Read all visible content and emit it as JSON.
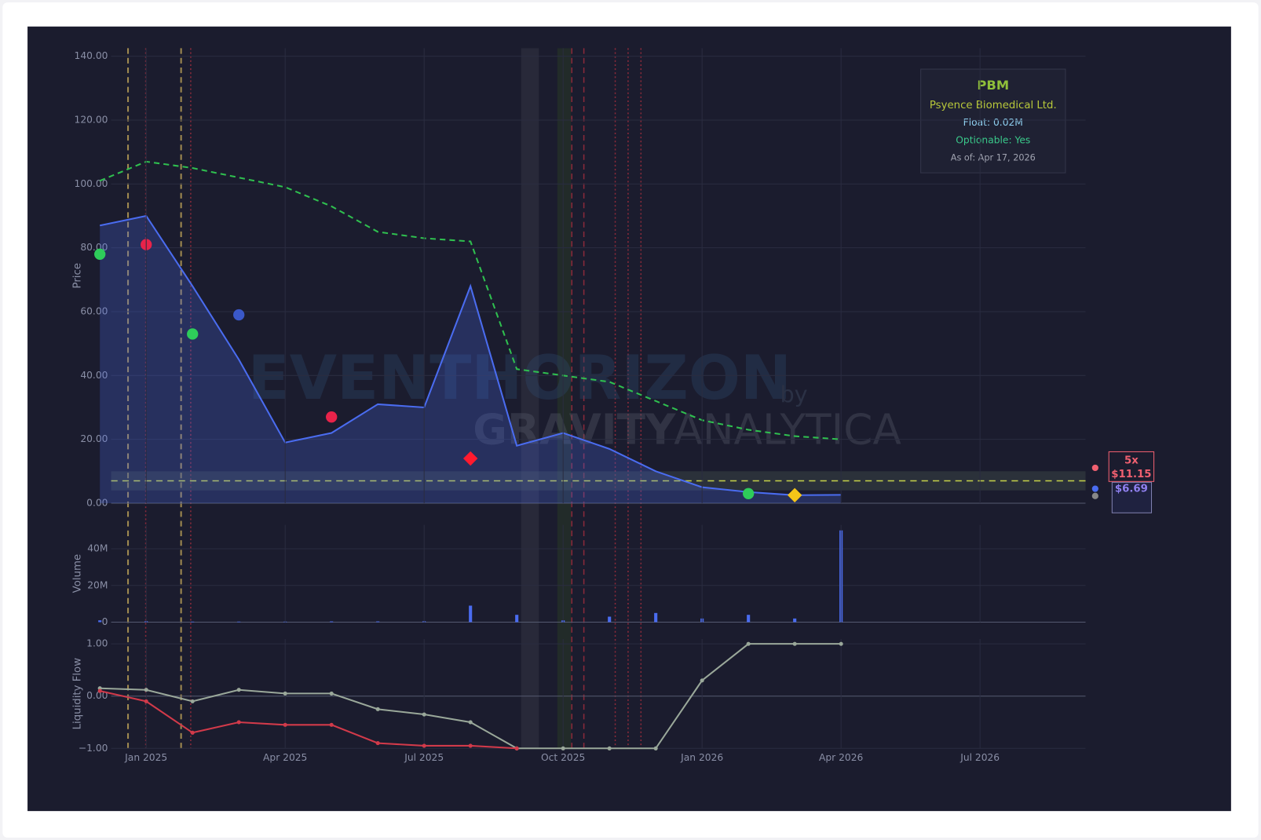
{
  "chart_data": [
    {
      "type": "line",
      "ylabel": "Price",
      "x": [
        "2024-12",
        "2025-01",
        "2025-02",
        "2025-03",
        "2025-04",
        "2025-05",
        "2025-06",
        "2025-07",
        "2025-08",
        "2025-09",
        "2025-10",
        "2025-11",
        "2025-12",
        "2026-01",
        "2026-02",
        "2026-03",
        "2026-04"
      ],
      "series": [
        {
          "color": "#4a6cf0",
          "fill": true,
          "values": [
            87,
            90,
            68,
            45,
            19,
            22,
            31,
            30,
            68,
            18,
            22,
            17,
            10,
            5,
            3.5,
            2.5,
            2.6
          ]
        },
        {
          "color": "#2fbf4f",
          "dash": true,
          "values": [
            101,
            107,
            105,
            102,
            99,
            93,
            85,
            83,
            82,
            42,
            40,
            38,
            32,
            26,
            23,
            21,
            20
          ]
        }
      ],
      "hline": {
        "value": 7,
        "color": "#c8d44a"
      },
      "band": [
        4,
        10
      ],
      "markers": [
        {
          "x": "2024-12",
          "y": 78,
          "color": "#2ecc5a",
          "shape": "circle"
        },
        {
          "x": "2025-01",
          "y": 81,
          "color": "#e8234a",
          "shape": "circle"
        },
        {
          "x": "2025-02",
          "y": 53,
          "color": "#2ecc5a",
          "shape": "circle"
        },
        {
          "x": "2025-03",
          "y": 59,
          "color": "#3a58c8",
          "shape": "circle"
        },
        {
          "x": "2025-05",
          "y": 27,
          "color": "#e8234a",
          "shape": "circle"
        },
        {
          "x": "2025-08",
          "y": 14,
          "color": "#ff1a2e",
          "shape": "diamond"
        },
        {
          "x": "2026-02",
          "y": 3,
          "color": "#2ecc5a",
          "shape": "circle"
        },
        {
          "x": "2026-03",
          "y": 2.5,
          "color": "#f5c518",
          "shape": "diamond"
        }
      ],
      "xlim": [
        "2024-12",
        "2026-09"
      ],
      "ylim": [
        0,
        140
      ],
      "yticks": [
        {
          "value": 0,
          "label": "0.00"
        },
        {
          "value": 20,
          "label": "20.00"
        },
        {
          "value": 40,
          "label": "40.00"
        },
        {
          "value": 60,
          "label": "60.00"
        },
        {
          "value": 80,
          "label": "80.00"
        },
        {
          "value": 100,
          "label": "100.00"
        },
        {
          "value": 120,
          "label": "120.00"
        },
        {
          "value": 140,
          "label": "140.00"
        }
      ],
      "grid": true
    },
    {
      "type": "bar",
      "ylabel": "Volume",
      "color": "#4a6cf0",
      "x": [
        "2024-12",
        "2025-01",
        "2025-02",
        "2025-03",
        "2025-04",
        "2025-05",
        "2025-06",
        "2025-07",
        "2025-08",
        "2025-09",
        "2025-10",
        "2025-11",
        "2025-12",
        "2026-01",
        "2026-02",
        "2026-03",
        "2026-04"
      ],
      "values": [
        1000000,
        500000,
        300000,
        300000,
        300000,
        400000,
        400000,
        500000,
        9000000,
        4000000,
        1000000,
        3000000,
        5000000,
        2000000,
        4000000,
        2000000,
        50000000
      ],
      "xlim": [
        "2024-12",
        "2026-09"
      ],
      "ylim": [
        0,
        53000000
      ],
      "yticks": [
        0,
        {
          "value": 20000000,
          "label": "20M"
        },
        {
          "value": 40000000,
          "label": "40M"
        }
      ],
      "grid": true
    },
    {
      "type": "line",
      "ylabel": "Liquidity Flow",
      "x": [
        "2024-12",
        "2025-01",
        "2025-02",
        "2025-03",
        "2025-04",
        "2025-05",
        "2025-06",
        "2025-07",
        "2025-08",
        "2025-09",
        "2025-10",
        "2025-11",
        "2025-12",
        "2026-01",
        "2026-02",
        "2026-03",
        "2026-04"
      ],
      "series": [
        {
          "color": "#9aa89a",
          "dots": true,
          "values": [
            0.15,
            0.12,
            -0.1,
            0.12,
            0.05,
            0.05,
            -0.25,
            -0.35,
            -0.5,
            -1,
            -1,
            -1,
            -1,
            0.3,
            1,
            1,
            1
          ]
        },
        {
          "color": "#d23a4a",
          "dots": true,
          "values": [
            0.1,
            -0.1,
            -0.7,
            -0.5,
            -0.55,
            -0.55,
            -0.9,
            -0.95,
            -0.95,
            -1,
            null,
            null,
            null,
            null,
            null,
            null,
            null
          ]
        }
      ],
      "xlim": [
        "2024-12",
        "2026-09"
      ],
      "ylim": [
        -1,
        1
      ],
      "yticks": [
        {
          "value": -1,
          "label": "−1.00"
        },
        {
          "value": 0,
          "label": "0.00"
        },
        {
          "value": 1,
          "label": "1.00"
        }
      ],
      "xticks": [
        {
          "value": "2025-01",
          "label": "Jan 2025"
        },
        {
          "value": "2025-04",
          "label": "Apr 2025"
        },
        {
          "value": "2025-07",
          "label": "Jul 2025"
        },
        {
          "value": "2025-10",
          "label": "Oct 2025"
        },
        {
          "value": "2026-01",
          "label": "Jan 2026"
        },
        {
          "value": "2026-04",
          "label": "Apr 2026"
        },
        {
          "value": "2026-07",
          "label": "Jul 2026"
        }
      ],
      "grid": true
    }
  ],
  "info_box": {
    "ticker": "PBM",
    "company": "Psyence Biomedical Ltd.",
    "float": "Float: 0.02M",
    "optionable": "Optionable: Yes",
    "as_of": "As of: Apr 17, 2026"
  },
  "price_labels": {
    "multiple": "5x",
    "target": "$11.15",
    "last": "$6.69"
  },
  "watermark": {
    "main": "EVENTHORIZON",
    "by": "by",
    "brand1": "GRAVITY",
    "brand2": "ANALYTICA"
  }
}
